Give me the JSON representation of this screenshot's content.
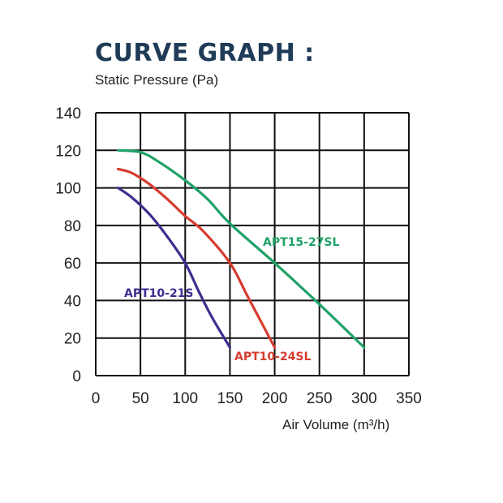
{
  "chart_data": {
    "type": "line",
    "title": "CURVE GRAPH :",
    "ylabel": "Static Pressure (Pa)",
    "xlabel": "Air Volume (m³/h)",
    "xlim": [
      0,
      350
    ],
    "ylim": [
      0,
      140
    ],
    "xticks": [
      "0",
      "50",
      "100",
      "150",
      "200",
      "250",
      "300",
      "350"
    ],
    "yticks": [
      "0",
      "20",
      "40",
      "60",
      "80",
      "100",
      "120",
      "140"
    ],
    "grid": true,
    "series": [
      {
        "name": "APT10-21S",
        "color": "#3b2f8f",
        "x": [
          25,
          40,
          60,
          80,
          100,
          115,
          130,
          150
        ],
        "y": [
          100,
          95,
          86,
          74,
          60,
          45,
          31,
          15
        ]
      },
      {
        "name": "APT10-24SL",
        "color": "#d63b2f",
        "x": [
          25,
          40,
          60,
          80,
          100,
          120,
          150,
          170,
          200
        ],
        "y": [
          110,
          108,
          102,
          94,
          85,
          77,
          60,
          42,
          15
        ]
      },
      {
        "name": "APT15-27SL",
        "color": "#1fa267",
        "x": [
          25,
          50,
          70,
          100,
          125,
          150,
          200,
          250,
          300
        ],
        "y": [
          120,
          119,
          114,
          104,
          94,
          81,
          60,
          38,
          15
        ]
      }
    ]
  }
}
